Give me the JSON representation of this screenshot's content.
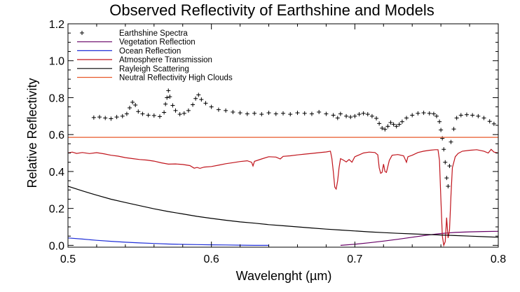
{
  "chart_data": {
    "type": "line",
    "title": "Observed Reflectivity of Earthshine and Models",
    "xlabel": "Wavelenght (µm)",
    "ylabel": "Relative Reflectivity",
    "xlim": [
      0.5,
      0.8
    ],
    "ylim": [
      -0.01,
      1.2
    ],
    "x_ticks": [
      {
        "value": 0.5,
        "label": "0.5"
      },
      {
        "value": 0.6,
        "label": "0.6"
      },
      {
        "value": 0.7,
        "label": "0.7"
      },
      {
        "value": 0.8,
        "label": "0.8"
      }
    ],
    "y_ticks": [
      {
        "value": 0.0,
        "label": "0.0"
      },
      {
        "value": 0.2,
        "label": "0.2"
      },
      {
        "value": 0.4,
        "label": "0.4"
      },
      {
        "value": 0.6,
        "label": "0.6"
      },
      {
        "value": 0.8,
        "label": "0.8"
      },
      {
        "value": 1.0,
        "label": "1.0"
      },
      {
        "value": 1.2,
        "label": "1.2"
      }
    ],
    "legend_position": "top-left",
    "grid": false,
    "series": [
      {
        "name": "Earthshine Spectra",
        "kind": "scatter",
        "marker": "plus",
        "color": "#000000",
        "points": [
          [
            0.518,
            0.692
          ],
          [
            0.522,
            0.695
          ],
          [
            0.526,
            0.69
          ],
          [
            0.53,
            0.686
          ],
          [
            0.534,
            0.695
          ],
          [
            0.538,
            0.7
          ],
          [
            0.541,
            0.712
          ],
          [
            0.543,
            0.745
          ],
          [
            0.545,
            0.775
          ],
          [
            0.547,
            0.76
          ],
          [
            0.549,
            0.725
          ],
          [
            0.552,
            0.712
          ],
          [
            0.556,
            0.705
          ],
          [
            0.56,
            0.703
          ],
          [
            0.564,
            0.698
          ],
          [
            0.567,
            0.72
          ],
          [
            0.568,
            0.765
          ],
          [
            0.569,
            0.8
          ],
          [
            0.57,
            0.838
          ],
          [
            0.571,
            0.805
          ],
          [
            0.573,
            0.758
          ],
          [
            0.575,
            0.73
          ],
          [
            0.578,
            0.71
          ],
          [
            0.581,
            0.715
          ],
          [
            0.584,
            0.73
          ],
          [
            0.587,
            0.762
          ],
          [
            0.589,
            0.795
          ],
          [
            0.591,
            0.815
          ],
          [
            0.593,
            0.79
          ],
          [
            0.596,
            0.77
          ],
          [
            0.6,
            0.75
          ],
          [
            0.605,
            0.735
          ],
          [
            0.61,
            0.73
          ],
          [
            0.615,
            0.722
          ],
          [
            0.62,
            0.718
          ],
          [
            0.625,
            0.712
          ],
          [
            0.63,
            0.715
          ],
          [
            0.635,
            0.71
          ],
          [
            0.64,
            0.718
          ],
          [
            0.645,
            0.712
          ],
          [
            0.65,
            0.715
          ],
          [
            0.655,
            0.71
          ],
          [
            0.66,
            0.718
          ],
          [
            0.665,
            0.715
          ],
          [
            0.67,
            0.712
          ],
          [
            0.675,
            0.722
          ],
          [
            0.68,
            0.712
          ],
          [
            0.685,
            0.705
          ],
          [
            0.688,
            0.69
          ],
          [
            0.69,
            0.712
          ],
          [
            0.694,
            0.7
          ],
          [
            0.697,
            0.695
          ],
          [
            0.7,
            0.7
          ],
          [
            0.703,
            0.71
          ],
          [
            0.706,
            0.715
          ],
          [
            0.709,
            0.71
          ],
          [
            0.712,
            0.7
          ],
          [
            0.715,
            0.688
          ],
          [
            0.717,
            0.66
          ],
          [
            0.719,
            0.635
          ],
          [
            0.721,
            0.628
          ],
          [
            0.723,
            0.645
          ],
          [
            0.725,
            0.665
          ],
          [
            0.727,
            0.655
          ],
          [
            0.729,
            0.645
          ],
          [
            0.731,
            0.655
          ],
          [
            0.733,
            0.67
          ],
          [
            0.736,
            0.69
          ],
          [
            0.74,
            0.705
          ],
          [
            0.744,
            0.715
          ],
          [
            0.748,
            0.718
          ],
          [
            0.752,
            0.715
          ],
          [
            0.755,
            0.712
          ],
          [
            0.757,
            0.7
          ],
          [
            0.759,
            0.67
          ],
          [
            0.76,
            0.625
          ],
          [
            0.761,
            0.58
          ],
          [
            0.762,
            0.52
          ],
          [
            0.763,
            0.45
          ],
          [
            0.764,
            0.365
          ],
          [
            0.765,
            0.32
          ],
          [
            0.766,
            0.43
          ],
          [
            0.767,
            0.56
          ],
          [
            0.769,
            0.63
          ],
          [
            0.771,
            0.69
          ],
          [
            0.774,
            0.705
          ],
          [
            0.778,
            0.708
          ],
          [
            0.782,
            0.705
          ],
          [
            0.786,
            0.7
          ],
          [
            0.79,
            0.69
          ],
          [
            0.794,
            0.672
          ],
          [
            0.797,
            0.658
          ]
        ]
      },
      {
        "name": "Vegetation Reflection",
        "kind": "line",
        "color": "#660066",
        "points": [
          [
            0.69,
            0.0
          ],
          [
            0.7,
            0.006
          ],
          [
            0.71,
            0.014
          ],
          [
            0.72,
            0.023
          ],
          [
            0.73,
            0.033
          ],
          [
            0.74,
            0.044
          ],
          [
            0.75,
            0.055
          ],
          [
            0.76,
            0.064
          ],
          [
            0.77,
            0.07
          ],
          [
            0.78,
            0.073
          ],
          [
            0.79,
            0.075
          ],
          [
            0.8,
            0.076
          ]
        ]
      },
      {
        "name": "Ocean Reflection",
        "kind": "line",
        "color": "#1f2fd8",
        "points": [
          [
            0.5,
            0.04
          ],
          [
            0.51,
            0.034
          ],
          [
            0.52,
            0.027
          ],
          [
            0.53,
            0.022
          ],
          [
            0.54,
            0.017
          ],
          [
            0.55,
            0.013
          ],
          [
            0.56,
            0.01
          ],
          [
            0.57,
            0.007
          ],
          [
            0.58,
            0.005
          ],
          [
            0.59,
            0.004
          ],
          [
            0.6,
            0.003
          ],
          [
            0.61,
            0.002
          ],
          [
            0.62,
            0.001
          ],
          [
            0.63,
            0.0
          ],
          [
            0.64,
            0.0
          ]
        ]
      },
      {
        "name": "Atmosphere Transmission",
        "kind": "line",
        "color": "#c0141c",
        "points": [
          [
            0.5,
            0.5
          ],
          [
            0.503,
            0.505
          ],
          [
            0.506,
            0.498
          ],
          [
            0.51,
            0.503
          ],
          [
            0.515,
            0.497
          ],
          [
            0.52,
            0.502
          ],
          [
            0.525,
            0.496
          ],
          [
            0.53,
            0.488
          ],
          [
            0.535,
            0.483
          ],
          [
            0.54,
            0.475
          ],
          [
            0.545,
            0.47
          ],
          [
            0.55,
            0.465
          ],
          [
            0.555,
            0.462
          ],
          [
            0.56,
            0.456
          ],
          [
            0.565,
            0.447
          ],
          [
            0.57,
            0.44
          ],
          [
            0.575,
            0.441
          ],
          [
            0.58,
            0.438
          ],
          [
            0.585,
            0.432
          ],
          [
            0.588,
            0.418
          ],
          [
            0.59,
            0.422
          ],
          [
            0.592,
            0.417
          ],
          [
            0.595,
            0.424
          ],
          [
            0.6,
            0.427
          ],
          [
            0.605,
            0.434
          ],
          [
            0.61,
            0.442
          ],
          [
            0.615,
            0.448
          ],
          [
            0.62,
            0.454
          ],
          [
            0.625,
            0.458
          ],
          [
            0.628,
            0.45
          ],
          [
            0.629,
            0.43
          ],
          [
            0.63,
            0.455
          ],
          [
            0.635,
            0.468
          ],
          [
            0.64,
            0.48
          ],
          [
            0.645,
            0.478
          ],
          [
            0.648,
            0.468
          ],
          [
            0.65,
            0.482
          ],
          [
            0.655,
            0.485
          ],
          [
            0.66,
            0.49
          ],
          [
            0.665,
            0.494
          ],
          [
            0.67,
            0.498
          ],
          [
            0.675,
            0.502
          ],
          [
            0.68,
            0.506
          ],
          [
            0.683,
            0.51
          ],
          [
            0.684,
            0.47
          ],
          [
            0.685,
            0.4
          ],
          [
            0.686,
            0.315
          ],
          [
            0.687,
            0.305
          ],
          [
            0.688,
            0.35
          ],
          [
            0.689,
            0.42
          ],
          [
            0.69,
            0.47
          ],
          [
            0.692,
            0.462
          ],
          [
            0.694,
            0.452
          ],
          [
            0.696,
            0.465
          ],
          [
            0.698,
            0.45
          ],
          [
            0.7,
            0.48
          ],
          [
            0.703,
            0.49
          ],
          [
            0.706,
            0.5
          ],
          [
            0.71,
            0.505
          ],
          [
            0.714,
            0.503
          ],
          [
            0.716,
            0.49
          ],
          [
            0.717,
            0.42
          ],
          [
            0.718,
            0.39
          ],
          [
            0.719,
            0.395
          ],
          [
            0.72,
            0.44
          ],
          [
            0.721,
            0.4
          ],
          [
            0.722,
            0.395
          ],
          [
            0.724,
            0.46
          ],
          [
            0.726,
            0.488
          ],
          [
            0.73,
            0.492
          ],
          [
            0.734,
            0.485
          ],
          [
            0.736,
            0.45
          ],
          [
            0.737,
            0.48
          ],
          [
            0.74,
            0.488
          ],
          [
            0.744,
            0.503
          ],
          [
            0.748,
            0.51
          ],
          [
            0.752,
            0.515
          ],
          [
            0.756,
            0.518
          ],
          [
            0.758,
            0.518
          ],
          [
            0.759,
            0.46
          ],
          [
            0.76,
            0.25
          ],
          [
            0.761,
            0.05
          ],
          [
            0.762,
            0.0
          ],
          [
            0.763,
            0.02
          ],
          [
            0.764,
            0.15
          ],
          [
            0.765,
            0.04
          ],
          [
            0.766,
            0.08
          ],
          [
            0.767,
            0.27
          ],
          [
            0.768,
            0.42
          ],
          [
            0.77,
            0.48
          ],
          [
            0.772,
            0.498
          ],
          [
            0.775,
            0.51
          ],
          [
            0.78,
            0.515
          ],
          [
            0.785,
            0.518
          ],
          [
            0.79,
            0.51
          ],
          [
            0.793,
            0.5
          ],
          [
            0.795,
            0.52
          ],
          [
            0.797,
            0.505
          ],
          [
            0.8,
            0.5
          ]
        ]
      },
      {
        "name": "Rayleigh Scattering",
        "kind": "line",
        "color": "#000000",
        "points": [
          [
            0.5,
            0.32
          ],
          [
            0.51,
            0.295
          ],
          [
            0.52,
            0.272
          ],
          [
            0.53,
            0.25
          ],
          [
            0.54,
            0.232
          ],
          [
            0.55,
            0.215
          ],
          [
            0.56,
            0.198
          ],
          [
            0.57,
            0.183
          ],
          [
            0.58,
            0.17
          ],
          [
            0.59,
            0.157
          ],
          [
            0.6,
            0.146
          ],
          [
            0.61,
            0.136
          ],
          [
            0.62,
            0.127
          ],
          [
            0.63,
            0.12
          ],
          [
            0.64,
            0.112
          ],
          [
            0.65,
            0.106
          ],
          [
            0.66,
            0.1
          ],
          [
            0.67,
            0.094
          ],
          [
            0.68,
            0.088
          ],
          [
            0.69,
            0.083
          ],
          [
            0.7,
            0.078
          ],
          [
            0.71,
            0.073
          ],
          [
            0.72,
            0.069
          ],
          [
            0.73,
            0.065
          ],
          [
            0.74,
            0.062
          ],
          [
            0.75,
            0.059
          ],
          [
            0.76,
            0.056
          ],
          [
            0.77,
            0.053
          ],
          [
            0.78,
            0.05
          ],
          [
            0.79,
            0.047
          ],
          [
            0.8,
            0.044
          ]
        ]
      },
      {
        "name": "Neutral Reflectivity High Clouds",
        "kind": "line",
        "color": "#e8582a",
        "points": [
          [
            0.5,
            0.585
          ],
          [
            0.8,
            0.585
          ]
        ]
      }
    ]
  }
}
